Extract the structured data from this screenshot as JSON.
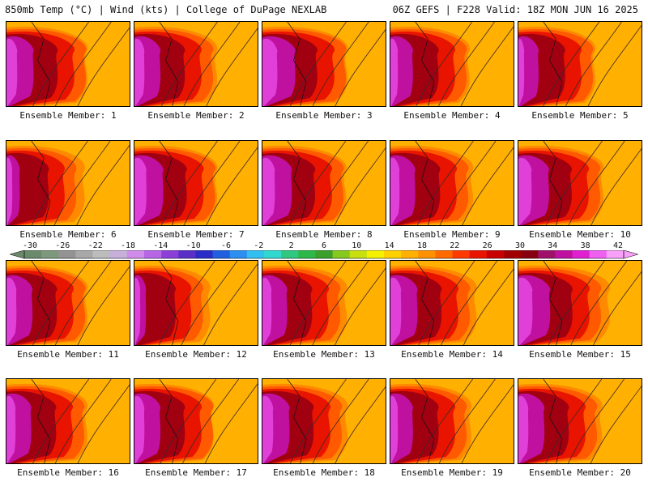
{
  "header": {
    "left_title": "850mb Temp (°C) | Wind (kts) | College of DuPage NEXLAB",
    "right_title": "06Z GEFS | F228 Valid: 18Z MON JUN 16 2025"
  },
  "colorbar": {
    "tick_labels": [
      "-30",
      "-26",
      "-22",
      "-18",
      "-14",
      "-10",
      "-6",
      "-2",
      "2",
      "6",
      "10",
      "14",
      "18",
      "22",
      "26",
      "30",
      "34",
      "38",
      "42"
    ],
    "colors": [
      "#6b8a6b",
      "#7e987e",
      "#939393",
      "#a8a8a8",
      "#bcbcbc",
      "#c6b0da",
      "#d08cea",
      "#b766e6",
      "#8c3fd8",
      "#5a2fc8",
      "#2b2bc8",
      "#1f5fe0",
      "#2a8ff0",
      "#33c0f0",
      "#30d8d0",
      "#30c880",
      "#2fb84a",
      "#3aa02a",
      "#86c81c",
      "#c8e010",
      "#f5f000",
      "#ffd000",
      "#ffb000",
      "#ff9000",
      "#ff6a00",
      "#ff3a00",
      "#e81400",
      "#c80000",
      "#a00000",
      "#880010",
      "#a0106a",
      "#c010a0",
      "#e020d0",
      "#f060f0",
      "#f8a0f8"
    ]
  },
  "members": [
    {
      "label": "Ensemble Member: 1",
      "heat": 0.82,
      "ridge": 0.5
    },
    {
      "label": "Ensemble Member: 2",
      "heat": 0.8,
      "ridge": 0.55
    },
    {
      "label": "Ensemble Member: 3",
      "heat": 0.92,
      "ridge": 0.62
    },
    {
      "label": "Ensemble Member: 4",
      "heat": 0.74,
      "ridge": 0.45
    },
    {
      "label": "Ensemble Member: 5",
      "heat": 0.7,
      "ridge": 0.38
    },
    {
      "label": "Ensemble Member: 6",
      "heat": 0.58,
      "ridge": 0.42
    },
    {
      "label": "Ensemble Member: 7",
      "heat": 0.85,
      "ridge": 0.55
    },
    {
      "label": "Ensemble Member: 8",
      "heat": 0.86,
      "ridge": 0.58
    },
    {
      "label": "Ensemble Member: 9",
      "heat": 0.78,
      "ridge": 0.55
    },
    {
      "label": "Ensemble Member: 10",
      "heat": 0.88,
      "ridge": 0.62
    },
    {
      "label": "Ensemble Member: 11",
      "heat": 0.8,
      "ridge": 0.5
    },
    {
      "label": "Ensemble Member: 12",
      "heat": 0.55,
      "ridge": 0.35
    },
    {
      "label": "Ensemble Member: 13",
      "heat": 0.78,
      "ridge": 0.6
    },
    {
      "label": "Ensemble Member: 14",
      "heat": 0.82,
      "ridge": 0.65
    },
    {
      "label": "Ensemble Member: 15",
      "heat": 0.9,
      "ridge": 0.8
    },
    {
      "label": "Ensemble Member: 16",
      "heat": 0.78,
      "ridge": 0.5
    },
    {
      "label": "Ensemble Member: 17",
      "heat": 0.8,
      "ridge": 0.45
    },
    {
      "label": "Ensemble Member: 18",
      "heat": 0.82,
      "ridge": 0.62
    },
    {
      "label": "Ensemble Member: 19",
      "heat": 0.74,
      "ridge": 0.5
    },
    {
      "label": "Ensemble Member: 20",
      "heat": 0.8,
      "ridge": 0.58
    }
  ]
}
